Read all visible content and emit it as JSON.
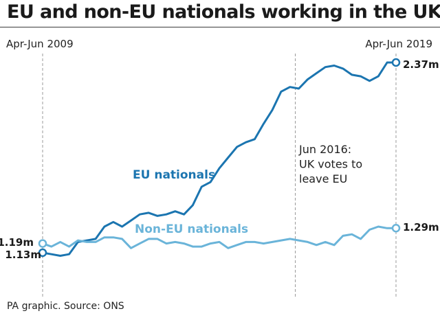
{
  "title": "EU and non-EU nationals working in the UK",
  "source": "PA graphic. Source: ONS",
  "colors": {
    "eu": "#1b75b0",
    "non_eu": "#6ab4d9",
    "text": "#1a1a1a",
    "guide": "#9a9a9a"
  },
  "chart_data": {
    "type": "line",
    "title": "EU and non-EU nationals working in the UK",
    "x_start_label": "Apr-Jun 2009",
    "x_end_label": "Apr-Jun 2019",
    "x_range": [
      2009.25,
      2019.25
    ],
    "y_unit": "millions",
    "annotation": {
      "x": 2016.4,
      "lines": [
        "Jun 2016:",
        "UK votes to",
        "leave EU"
      ]
    },
    "series": [
      {
        "name": "EU nationals",
        "label": "EU nationals",
        "start_label": "1.13m",
        "end_label": "2.37m",
        "x": [
          2009.25,
          2009.5,
          2009.75,
          2010.0,
          2010.25,
          2010.5,
          2010.75,
          2011.0,
          2011.25,
          2011.5,
          2011.75,
          2012.0,
          2012.25,
          2012.5,
          2012.75,
          2013.0,
          2013.25,
          2013.5,
          2013.75,
          2014.0,
          2014.25,
          2014.5,
          2014.75,
          2015.0,
          2015.25,
          2015.5,
          2015.75,
          2016.0,
          2016.25,
          2016.5,
          2016.75,
          2017.0,
          2017.25,
          2017.5,
          2017.75,
          2018.0,
          2018.25,
          2018.5,
          2018.75,
          2019.0,
          2019.25
        ],
        "values": [
          1.13,
          1.12,
          1.11,
          1.12,
          1.2,
          1.21,
          1.22,
          1.3,
          1.33,
          1.3,
          1.34,
          1.38,
          1.39,
          1.37,
          1.38,
          1.4,
          1.38,
          1.44,
          1.56,
          1.59,
          1.68,
          1.75,
          1.82,
          1.85,
          1.87,
          1.97,
          2.06,
          2.18,
          2.21,
          2.2,
          2.26,
          2.3,
          2.34,
          2.35,
          2.33,
          2.29,
          2.28,
          2.25,
          2.28,
          2.37,
          2.37
        ]
      },
      {
        "name": "Non-EU nationals",
        "label": "Non-EU nationals",
        "start_label": "1.19m",
        "end_label": "1.29m",
        "x": [
          2009.25,
          2009.5,
          2009.75,
          2010.0,
          2010.25,
          2010.5,
          2010.75,
          2011.0,
          2011.25,
          2011.5,
          2011.75,
          2012.0,
          2012.25,
          2012.5,
          2012.75,
          2013.0,
          2013.25,
          2013.5,
          2013.75,
          2014.0,
          2014.25,
          2014.5,
          2014.75,
          2015.0,
          2015.25,
          2015.5,
          2015.75,
          2016.0,
          2016.25,
          2016.5,
          2016.75,
          2017.0,
          2017.25,
          2017.5,
          2017.75,
          2018.0,
          2018.25,
          2018.5,
          2018.75,
          2019.0,
          2019.25
        ],
        "values": [
          1.19,
          1.17,
          1.2,
          1.17,
          1.21,
          1.2,
          1.2,
          1.23,
          1.23,
          1.22,
          1.16,
          1.19,
          1.22,
          1.22,
          1.19,
          1.2,
          1.19,
          1.17,
          1.17,
          1.19,
          1.2,
          1.16,
          1.18,
          1.2,
          1.2,
          1.19,
          1.2,
          1.21,
          1.22,
          1.21,
          1.2,
          1.18,
          1.2,
          1.18,
          1.24,
          1.25,
          1.22,
          1.28,
          1.3,
          1.29,
          1.29
        ]
      }
    ]
  }
}
